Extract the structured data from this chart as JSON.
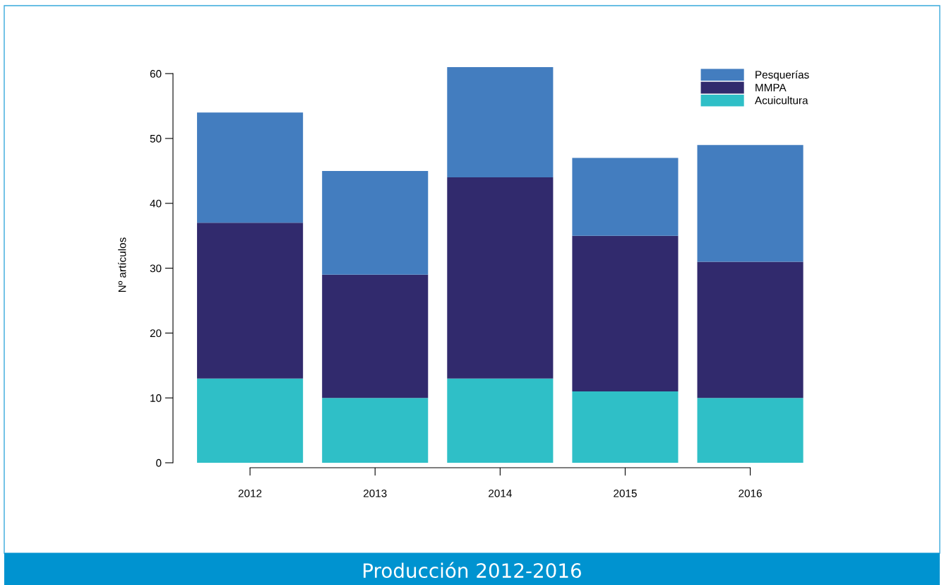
{
  "chart_data": {
    "type": "bar",
    "title": "Producción 2012-2016",
    "ylabel": "Nº artículos",
    "categories": [
      "2012",
      "2013",
      "2014",
      "2015",
      "2016"
    ],
    "stacked": true,
    "series": [
      {
        "name": "Acuicultura",
        "color": "#2fbfc7",
        "values": [
          13,
          10,
          13,
          11,
          10
        ]
      },
      {
        "name": "MMPA",
        "color": "#312a6d",
        "values": [
          24,
          19,
          31,
          24,
          21
        ]
      },
      {
        "name": "Pesquerías",
        "color": "#437dbf",
        "values": [
          17,
          16,
          17,
          12,
          18
        ]
      }
    ],
    "ylim": [
      0,
      61
    ],
    "yticks": [
      0,
      10,
      20,
      30,
      40,
      50,
      60
    ],
    "grid": false,
    "legend": "top right"
  }
}
